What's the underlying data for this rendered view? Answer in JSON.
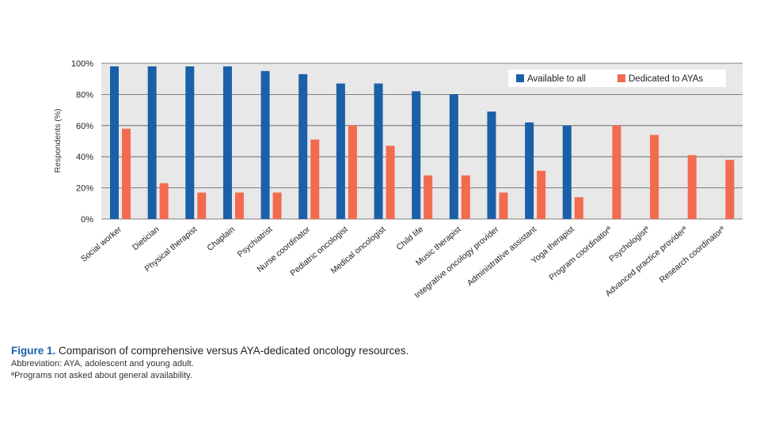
{
  "chart_data": {
    "type": "bar",
    "title": "",
    "xlabel": "",
    "ylabel": "Respondents (%)",
    "ylim": [
      0,
      100
    ],
    "yticks": [
      "0%",
      "20%",
      "40%",
      "60%",
      "80%",
      "100%"
    ],
    "grid": true,
    "legend_position": "top-right",
    "categories": [
      "Social worker",
      "Dietician",
      "Physical therapist",
      "Chaplain",
      "Psychiatrist",
      "Nurse coordinator",
      "Pediatric oncologist",
      "Medical oncologist",
      "Child life",
      "Music therapist",
      "Integrative oncology provider",
      "Administrative assistant",
      "Yoga therapist",
      "Program coordinatorª",
      "Psychologistª",
      "Advanced practice providerª",
      "Research coordinatorª"
    ],
    "series": [
      {
        "name": "Available to all",
        "color": "#1b5fa8",
        "values": [
          98,
          98,
          98,
          98,
          95,
          93,
          87,
          87,
          82,
          80,
          69,
          62,
          60,
          null,
          null,
          null,
          null
        ]
      },
      {
        "name": "Dedicated to AYAs",
        "color": "#f36b4f",
        "values": [
          58,
          23,
          17,
          17,
          17,
          51,
          60,
          47,
          28,
          28,
          17,
          31,
          14,
          60,
          54,
          41,
          38
        ]
      }
    ]
  },
  "caption": {
    "figure_label": "Figure 1.",
    "figure_text": " Comparison of comprehensive versus AYA-dedicated oncology resources.",
    "abbreviation": "Abbreviation: AYA, adolescent and young adult.",
    "footnote": "ªPrograms not asked about general availability."
  }
}
